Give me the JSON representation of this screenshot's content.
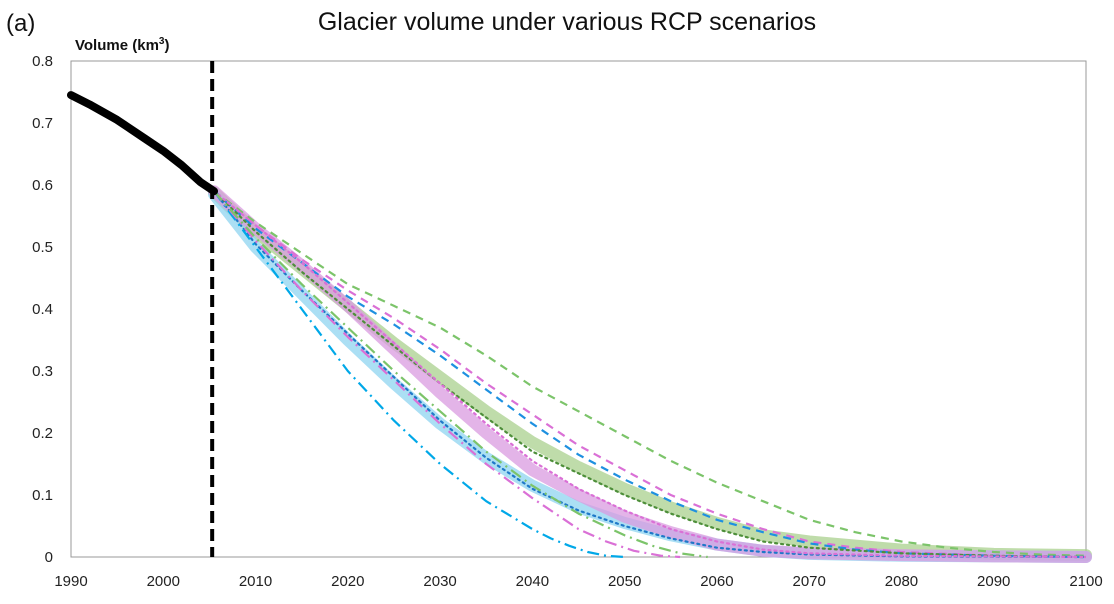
{
  "chart_data": {
    "type": "line",
    "panel_label": "(a)",
    "title": "Glacier volume under various RCP scenarios",
    "ylabel": "Volume (km",
    "ylabel_sup": "3",
    "ylabel_close": ")",
    "xlabel": "",
    "xlim": [
      1990,
      2100
    ],
    "ylim": [
      0,
      0.8
    ],
    "x_ticks": [
      "1990",
      "2000",
      "2010",
      "2020",
      "2030",
      "2040",
      "2050",
      "2060",
      "2070",
      "2080",
      "2090",
      "2100"
    ],
    "y_ticks": [
      "0",
      "0.1",
      "0.2",
      "0.3",
      "0.4",
      "0.5",
      "0.6",
      "0.7",
      "0.8"
    ],
    "grid": false,
    "legend": "none",
    "reference_line": {
      "x": 2005.3,
      "style": "dashed",
      "color": "#000000"
    },
    "series": [
      {
        "style": "thick-solid",
        "color": "#000000",
        "x": [
          1990,
          1992,
          1995,
          1998,
          2000,
          2002,
          2004,
          2005.5
        ],
        "y": [
          0.745,
          0.73,
          0.705,
          0.675,
          0.655,
          0.632,
          0.605,
          0.59
        ]
      },
      {
        "style": "band",
        "color": "#A9D08E",
        "x": [
          2005.5,
          2010,
          2015,
          2020,
          2025,
          2030,
          2035,
          2040,
          2045,
          2050,
          2055,
          2060,
          2065,
          2070,
          2080,
          2090,
          2100
        ],
        "y": [
          0.588,
          0.525,
          0.465,
          0.405,
          0.345,
          0.29,
          0.235,
          0.185,
          0.145,
          0.11,
          0.08,
          0.055,
          0.035,
          0.025,
          0.012,
          0.005,
          0.003
        ]
      },
      {
        "style": "band",
        "color": "#8FD4F0",
        "x": [
          2005.5,
          2010,
          2015,
          2020,
          2025,
          2030,
          2035,
          2040,
          2045,
          2050,
          2055,
          2060,
          2065,
          2070,
          2080,
          2090,
          2100
        ],
        "y": [
          0.585,
          0.5,
          0.425,
          0.35,
          0.28,
          0.215,
          0.16,
          0.115,
          0.08,
          0.055,
          0.035,
          0.02,
          0.01,
          0.005,
          0.002,
          0.001,
          0.0
        ]
      },
      {
        "style": "band",
        "color": "#DA9BE0",
        "x": [
          2005.5,
          2010,
          2015,
          2020,
          2025,
          2030,
          2035,
          2040,
          2045,
          2050,
          2055,
          2060,
          2065,
          2070,
          2080,
          2090,
          2100
        ],
        "y": [
          0.59,
          0.53,
          0.47,
          0.405,
          0.335,
          0.265,
          0.2,
          0.14,
          0.1,
          0.065,
          0.04,
          0.02,
          0.01,
          0.006,
          0.003,
          0.001,
          0.0
        ]
      },
      {
        "style": "dashed",
        "color": "#7CC46A",
        "x": [
          2005.5,
          2010,
          2015,
          2020,
          2025,
          2030,
          2035,
          2040,
          2045,
          2050,
          2055,
          2060,
          2065,
          2070,
          2075,
          2080,
          2085,
          2090,
          2095,
          2100
        ],
        "y": [
          0.59,
          0.54,
          0.49,
          0.44,
          0.405,
          0.37,
          0.325,
          0.275,
          0.235,
          0.195,
          0.155,
          0.12,
          0.09,
          0.06,
          0.04,
          0.025,
          0.015,
          0.008,
          0.004,
          0.002
        ]
      },
      {
        "style": "dashed",
        "color": "#DA70D6",
        "x": [
          2005.5,
          2010,
          2015,
          2020,
          2025,
          2030,
          2035,
          2040,
          2045,
          2050,
          2055,
          2060,
          2065,
          2070,
          2075,
          2080,
          2090,
          2100
        ],
        "y": [
          0.59,
          0.535,
          0.48,
          0.43,
          0.385,
          0.335,
          0.28,
          0.23,
          0.18,
          0.14,
          0.1,
          0.07,
          0.045,
          0.025,
          0.015,
          0.008,
          0.002,
          0.0
        ]
      },
      {
        "style": "dashed",
        "color": "#1E90E0",
        "x": [
          2005.5,
          2010,
          2015,
          2020,
          2025,
          2030,
          2035,
          2040,
          2045,
          2050,
          2055,
          2060,
          2065,
          2070,
          2075,
          2080,
          2090,
          2100
        ],
        "y": [
          0.59,
          0.53,
          0.475,
          0.42,
          0.375,
          0.325,
          0.27,
          0.215,
          0.165,
          0.125,
          0.09,
          0.06,
          0.04,
          0.022,
          0.012,
          0.006,
          0.002,
          0.0
        ]
      },
      {
        "style": "dotted",
        "color": "#4E8F3A",
        "x": [
          2005.5,
          2010,
          2015,
          2020,
          2025,
          2030,
          2035,
          2040,
          2045,
          2050,
          2055,
          2060,
          2065,
          2070,
          2080,
          2090,
          2100
        ],
        "y": [
          0.59,
          0.525,
          0.46,
          0.4,
          0.34,
          0.28,
          0.225,
          0.17,
          0.135,
          0.1,
          0.07,
          0.045,
          0.025,
          0.015,
          0.006,
          0.002,
          0.0
        ]
      },
      {
        "style": "dotted",
        "color": "#1E78C8",
        "x": [
          2005.5,
          2010,
          2015,
          2020,
          2025,
          2030,
          2035,
          2040,
          2045,
          2050,
          2055,
          2060,
          2065,
          2070,
          2080,
          2100
        ],
        "y": [
          0.59,
          0.505,
          0.43,
          0.36,
          0.29,
          0.22,
          0.16,
          0.11,
          0.075,
          0.05,
          0.03,
          0.015,
          0.008,
          0.004,
          0.001,
          0.0
        ]
      },
      {
        "style": "dotted",
        "color": "#DA70D6",
        "x": [
          2005.5,
          2010,
          2015,
          2020,
          2025,
          2030,
          2035,
          2040,
          2045,
          2050,
          2055,
          2060,
          2065,
          2070,
          2080,
          2100
        ],
        "y": [
          0.59,
          0.535,
          0.475,
          0.41,
          0.345,
          0.28,
          0.215,
          0.155,
          0.11,
          0.075,
          0.045,
          0.025,
          0.012,
          0.006,
          0.002,
          0.0
        ]
      },
      {
        "style": "dash-dot",
        "color": "#00A8E8",
        "x": [
          2005.5,
          2010,
          2015,
          2020,
          2025,
          2030,
          2035,
          2040,
          2042,
          2044,
          2046,
          2048,
          2050
        ],
        "y": [
          0.59,
          0.5,
          0.4,
          0.3,
          0.22,
          0.15,
          0.09,
          0.045,
          0.03,
          0.018,
          0.008,
          0.002,
          0.0
        ]
      },
      {
        "style": "dash-dot",
        "color": "#DA70D6",
        "x": [
          2005.5,
          2010,
          2015,
          2020,
          2025,
          2030,
          2035,
          2040,
          2045,
          2048,
          2051,
          2054,
          2056
        ],
        "y": [
          0.59,
          0.51,
          0.43,
          0.355,
          0.285,
          0.215,
          0.15,
          0.095,
          0.045,
          0.025,
          0.01,
          0.002,
          0.0
        ]
      },
      {
        "style": "dash-dot",
        "color": "#7CC46A",
        "x": [
          2005.5,
          2010,
          2015,
          2020,
          2025,
          2030,
          2035,
          2040,
          2045,
          2050,
          2053,
          2056,
          2059
        ],
        "y": [
          0.59,
          0.515,
          0.44,
          0.37,
          0.3,
          0.235,
          0.17,
          0.115,
          0.07,
          0.035,
          0.018,
          0.006,
          0.0
        ]
      }
    ]
  }
}
